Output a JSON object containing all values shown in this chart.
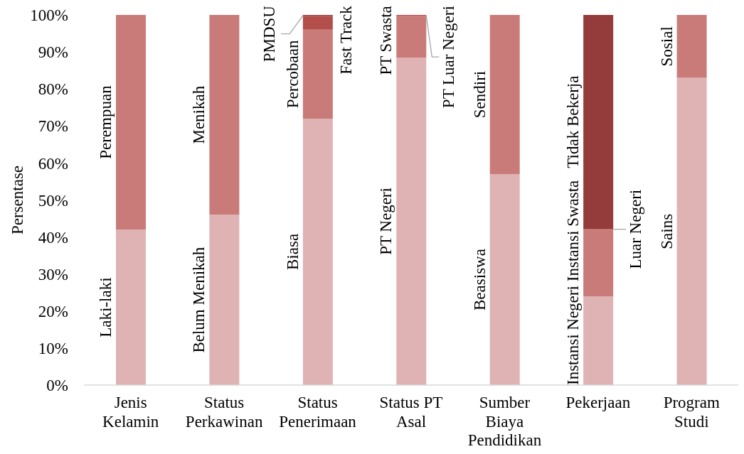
{
  "chart_data": {
    "type": "bar",
    "stacked": true,
    "ylabel": "Persentase",
    "categories": [
      "Jenis Kelamin",
      "Status Perkawinan",
      "Status Penerimaan",
      "Status PT Asal",
      "Sumber Biaya Pendidikan",
      "Pekerjaan",
      "Program Studi"
    ],
    "ylim": [
      0,
      100
    ],
    "yticks": [
      {
        "value": 0,
        "label": "0%"
      },
      {
        "value": 10,
        "label": "10%"
      },
      {
        "value": 20,
        "label": "20%"
      },
      {
        "value": 30,
        "label": "30%"
      },
      {
        "value": 40,
        "label": "40%"
      },
      {
        "value": 50,
        "label": "50%"
      },
      {
        "value": 60,
        "label": "60%"
      },
      {
        "value": 70,
        "label": "70%"
      },
      {
        "value": 80,
        "label": "80%"
      },
      {
        "value": 90,
        "label": "90%"
      },
      {
        "value": 100,
        "label": "100%"
      }
    ],
    "series": [
      {
        "color": "#dfb3b3",
        "values": [
          42,
          46,
          72,
          88.5,
          57,
          24,
          83
        ],
        "value_labels": [
          "Laki-laki",
          "Belum Menikah",
          "Biasa",
          "PT Negeri",
          "Beasiswa",
          "Instansi Negeri",
          "Sains"
        ]
      },
      {
        "color": "#c97b7a",
        "values": [
          58,
          54,
          24,
          11.2,
          43,
          18,
          17
        ],
        "value_labels": [
          "Perempuan",
          "Menikah",
          "Percobaan",
          "PT Swasta",
          "Sendiri",
          "Instansi Swasta",
          "Sosial"
        ]
      },
      {
        "color": "#b44e4b",
        "values": [
          null,
          null,
          3.7,
          0.3,
          null,
          0.2,
          null
        ],
        "value_labels": [
          null,
          null,
          "Fast Track",
          "PT Luar Negeri",
          null,
          "Luar Negeri",
          null
        ]
      },
      {
        "color": "#943c3b",
        "values": [
          null,
          null,
          0.3,
          null,
          null,
          57.8,
          null
        ],
        "value_labels": [
          null,
          null,
          "PMDSU",
          null,
          null,
          "Tidak Bekerja",
          null
        ]
      }
    ]
  }
}
